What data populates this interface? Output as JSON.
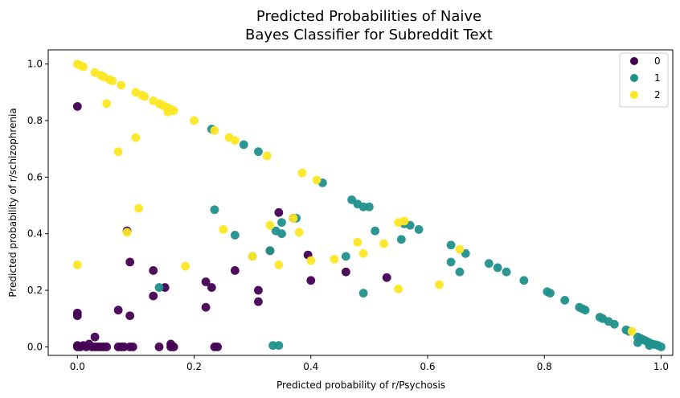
{
  "chart_data": {
    "type": "scatter",
    "title_line1": "Predicted Probabilities of Naive",
    "title_line2": "Bayes Classifier for Subreddit Text",
    "xlabel": "Predicted probability of r/Psychosis",
    "ylabel": "Predicted probability of r/schizophrenia",
    "xlim": [
      -0.05,
      1.02
    ],
    "ylim": [
      -0.03,
      1.05
    ],
    "xticks": [
      "0.0",
      "0.2",
      "0.4",
      "0.6",
      "0.8",
      "1.0"
    ],
    "yticks": [
      "0.0",
      "0.2",
      "0.4",
      "0.6",
      "0.8",
      "1.0"
    ],
    "legend_position": "top-right",
    "grid": false,
    "series": [
      {
        "name": "0",
        "color": "#440154",
        "points": [
          [
            0.0,
            0.0
          ],
          [
            0.0,
            0.005
          ],
          [
            0.005,
            0.0
          ],
          [
            0.01,
            0.005
          ],
          [
            0.015,
            0.0
          ],
          [
            0.02,
            0.01
          ],
          [
            0.025,
            0.0
          ],
          [
            0.03,
            0.0
          ],
          [
            0.035,
            0.0
          ],
          [
            0.04,
            0.0
          ],
          [
            0.045,
            0.0
          ],
          [
            0.05,
            0.0
          ],
          [
            0.03,
            0.035
          ],
          [
            0.07,
            0.0
          ],
          [
            0.075,
            0.0
          ],
          [
            0.08,
            0.0
          ],
          [
            0.09,
            0.0
          ],
          [
            0.095,
            0.0
          ],
          [
            0.0,
            0.11
          ],
          [
            0.0,
            0.12
          ],
          [
            0.0,
            0.85
          ],
          [
            0.07,
            0.13
          ],
          [
            0.09,
            0.11
          ],
          [
            0.085,
            0.41
          ],
          [
            0.09,
            0.3
          ],
          [
            0.13,
            0.27
          ],
          [
            0.13,
            0.18
          ],
          [
            0.14,
            0.0
          ],
          [
            0.15,
            0.21
          ],
          [
            0.16,
            0.01
          ],
          [
            0.16,
            0.0
          ],
          [
            0.165,
            0.0
          ],
          [
            0.22,
            0.23
          ],
          [
            0.22,
            0.14
          ],
          [
            0.23,
            0.21
          ],
          [
            0.235,
            0.0
          ],
          [
            0.24,
            0.0
          ],
          [
            0.27,
            0.27
          ],
          [
            0.31,
            0.2
          ],
          [
            0.31,
            0.16
          ],
          [
            0.33,
            0.34
          ],
          [
            0.345,
            0.475
          ],
          [
            0.37,
            0.455
          ],
          [
            0.395,
            0.325
          ],
          [
            0.4,
            0.235
          ],
          [
            0.46,
            0.265
          ],
          [
            0.53,
            0.245
          ]
        ]
      },
      {
        "name": "1",
        "color": "#21918c",
        "points": [
          [
            0.23,
            0.77
          ],
          [
            0.285,
            0.715
          ],
          [
            0.31,
            0.69
          ],
          [
            0.42,
            0.58
          ],
          [
            0.47,
            0.52
          ],
          [
            0.48,
            0.505
          ],
          [
            0.49,
            0.495
          ],
          [
            0.5,
            0.495
          ],
          [
            0.56,
            0.435
          ],
          [
            0.57,
            0.43
          ],
          [
            0.585,
            0.415
          ],
          [
            0.64,
            0.36
          ],
          [
            0.665,
            0.33
          ],
          [
            0.705,
            0.295
          ],
          [
            0.72,
            0.28
          ],
          [
            0.735,
            0.265
          ],
          [
            0.765,
            0.235
          ],
          [
            0.805,
            0.195
          ],
          [
            0.81,
            0.19
          ],
          [
            0.835,
            0.165
          ],
          [
            0.86,
            0.14
          ],
          [
            0.865,
            0.135
          ],
          [
            0.87,
            0.13
          ],
          [
            0.895,
            0.105
          ],
          [
            0.9,
            0.1
          ],
          [
            0.91,
            0.09
          ],
          [
            0.92,
            0.08
          ],
          [
            0.94,
            0.06
          ],
          [
            0.945,
            0.055
          ],
          [
            0.96,
            0.035
          ],
          [
            0.965,
            0.03
          ],
          [
            0.97,
            0.025
          ],
          [
            0.975,
            0.02
          ],
          [
            0.98,
            0.015
          ],
          [
            0.985,
            0.01
          ],
          [
            0.99,
            0.008
          ],
          [
            0.995,
            0.005
          ],
          [
            1.0,
            0.0
          ],
          [
            0.96,
            0.015
          ],
          [
            0.98,
            0.005
          ],
          [
            0.14,
            0.21
          ],
          [
            0.235,
            0.485
          ],
          [
            0.27,
            0.395
          ],
          [
            0.3,
            0.32
          ],
          [
            0.33,
            0.34
          ],
          [
            0.335,
            0.005
          ],
          [
            0.345,
            0.005
          ],
          [
            0.34,
            0.41
          ],
          [
            0.35,
            0.44
          ],
          [
            0.35,
            0.4
          ],
          [
            0.375,
            0.455
          ],
          [
            0.46,
            0.32
          ],
          [
            0.49,
            0.19
          ],
          [
            0.51,
            0.41
          ],
          [
            0.555,
            0.38
          ],
          [
            0.64,
            0.3
          ],
          [
            0.655,
            0.265
          ]
        ]
      },
      {
        "name": "2",
        "color": "#fde725",
        "points": [
          [
            0.0,
            1.0
          ],
          [
            0.005,
            0.995
          ],
          [
            0.01,
            0.99
          ],
          [
            0.03,
            0.97
          ],
          [
            0.04,
            0.96
          ],
          [
            0.045,
            0.955
          ],
          [
            0.055,
            0.945
          ],
          [
            0.06,
            0.94
          ],
          [
            0.075,
            0.925
          ],
          [
            0.1,
            0.9
          ],
          [
            0.11,
            0.89
          ],
          [
            0.115,
            0.885
          ],
          [
            0.13,
            0.87
          ],
          [
            0.14,
            0.86
          ],
          [
            0.145,
            0.855
          ],
          [
            0.15,
            0.85
          ],
          [
            0.155,
            0.845
          ],
          [
            0.16,
            0.84
          ],
          [
            0.155,
            0.83
          ],
          [
            0.165,
            0.835
          ],
          [
            0.2,
            0.8
          ],
          [
            0.235,
            0.765
          ],
          [
            0.26,
            0.74
          ],
          [
            0.27,
            0.73
          ],
          [
            0.325,
            0.675
          ],
          [
            0.385,
            0.615
          ],
          [
            0.41,
            0.59
          ],
          [
            0.55,
            0.44
          ],
          [
            0.56,
            0.445
          ],
          [
            0.05,
            0.86
          ],
          [
            0.07,
            0.69
          ],
          [
            0.1,
            0.74
          ],
          [
            0.105,
            0.49
          ],
          [
            0.0,
            0.29
          ],
          [
            0.085,
            0.405
          ],
          [
            0.185,
            0.285
          ],
          [
            0.25,
            0.415
          ],
          [
            0.3,
            0.32
          ],
          [
            0.33,
            0.43
          ],
          [
            0.345,
            0.29
          ],
          [
            0.37,
            0.455
          ],
          [
            0.38,
            0.405
          ],
          [
            0.4,
            0.305
          ],
          [
            0.44,
            0.31
          ],
          [
            0.48,
            0.37
          ],
          [
            0.49,
            0.33
          ],
          [
            0.525,
            0.365
          ],
          [
            0.55,
            0.205
          ],
          [
            0.62,
            0.22
          ],
          [
            0.655,
            0.345
          ],
          [
            0.95,
            0.055
          ]
        ]
      }
    ]
  }
}
